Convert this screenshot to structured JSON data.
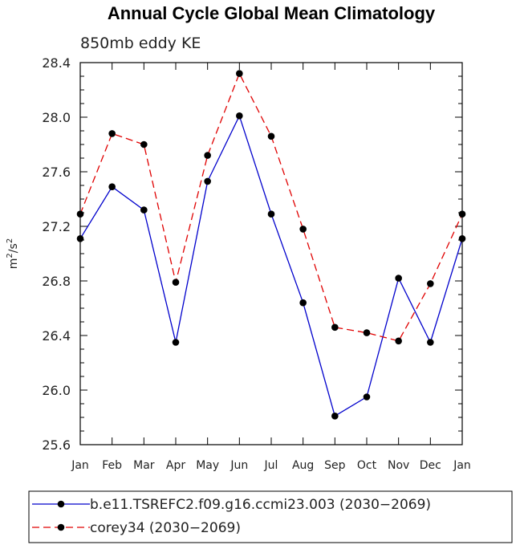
{
  "chart_data": {
    "type": "line",
    "title": "Annual Cycle Global Mean Climatology",
    "subtitle": "850mb eddy KE",
    "xlabel": "",
    "ylabel": "m²/s²",
    "ylabel_base": "m",
    "ylabel_exp1": "2",
    "ylabel_mid": "/s",
    "ylabel_exp2": "2",
    "categories": [
      "Jan",
      "Feb",
      "Mar",
      "Apr",
      "May",
      "Jun",
      "Jul",
      "Aug",
      "Sep",
      "Oct",
      "Nov",
      "Dec",
      "Jan"
    ],
    "ylim": [
      25.6,
      28.4
    ],
    "yticks": [
      "25.6",
      "26.0",
      "26.4",
      "26.8",
      "27.2",
      "27.6",
      "28.0",
      "28.4"
    ],
    "grid": false,
    "legend_position": "bottom",
    "series": [
      {
        "name": "b.e11.TSREFC2.f09.g16.ccmi23.003 (2030-2069)",
        "legend_label": "b.e11.TSREFC2.f09.g16.ccmi23.003 (2030−2069)",
        "color": "#0000cc",
        "dash": "solid",
        "values": [
          27.11,
          27.49,
          27.32,
          26.35,
          27.53,
          28.01,
          27.29,
          26.64,
          25.81,
          25.95,
          26.82,
          26.35,
          27.11
        ]
      },
      {
        "name": "corey34 (2030-2069)",
        "legend_label": "corey34 (2030−2069)",
        "color": "#e00000",
        "dash": "dashed",
        "values": [
          27.29,
          27.88,
          27.8,
          26.79,
          27.72,
          28.32,
          27.86,
          27.18,
          26.46,
          26.42,
          26.36,
          26.78,
          27.29
        ]
      }
    ]
  }
}
